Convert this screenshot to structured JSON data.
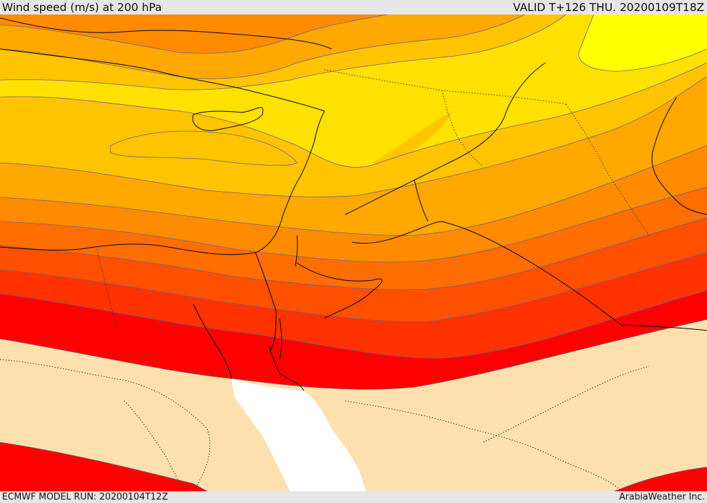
{
  "header": {
    "title": "Wind speed (m/s) at 200 hPa",
    "valid": "VALID T+126 THU. 20200109T18Z"
  },
  "footer": {
    "model_run": "ECMWF MODEL RUN: 20200104T12Z",
    "credit": "ArabiaWeather Inc."
  },
  "map": {
    "field": "wind speed",
    "level": "200 hPa",
    "units": "m/s",
    "colors": {
      "lowest": "#fde0ad",
      "band_yellow_bright": "#ffff00",
      "band_yellow": "#ffe100",
      "band_amber": "#ffc400",
      "band_orange_light": "#ffa800",
      "band_orange": "#ff8c00",
      "band_orange_dark": "#ff6e00",
      "band_red_orange": "#ff5000",
      "band_red_light": "#ff3200",
      "band_red": "#ff0000",
      "sea": "#ffffff",
      "contour_line": "#6d5d8c",
      "coastline": "#000000"
    }
  }
}
